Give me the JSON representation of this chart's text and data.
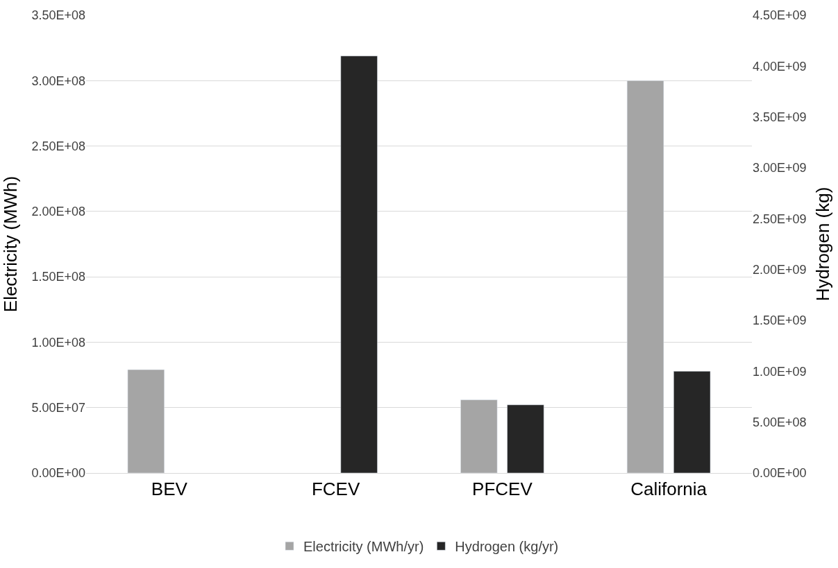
{
  "chart_data": {
    "type": "bar",
    "categories": [
      "BEV",
      "FCEV",
      "PFCEV",
      "California"
    ],
    "ylabel": "Electricity (MWh)",
    "y2label": "Hydrogen (kg)",
    "series": [
      {
        "name": "Electricity (MWh/yr)",
        "color": "#a5a5a5",
        "values": [
          79000000.0,
          null,
          56000000.0,
          300000000.0
        ]
      },
      {
        "name": "Hydrogen (kg/yr)",
        "color": "#262626",
        "values": [
          null,
          4100000000.0,
          670000000.0,
          1000000000.0
        ],
        "axis": "y2"
      }
    ],
    "ylim": [
      0,
      350000000.0
    ],
    "yticks": [
      {
        "value": 0,
        "label": "0.00E+00"
      },
      {
        "value": 50000000.0,
        "label": "5.00E+07"
      },
      {
        "value": 100000000.0,
        "label": "1.00E+08"
      },
      {
        "value": 150000000.0,
        "label": "1.50E+08"
      },
      {
        "value": 200000000.0,
        "label": "2.00E+08"
      },
      {
        "value": 250000000.0,
        "label": "2.50E+08"
      },
      {
        "value": 300000000.0,
        "label": "3.00E+08"
      },
      {
        "value": 350000000.0,
        "label": "3.50E+08"
      }
    ],
    "y2lim": [
      0,
      4500000000.0
    ],
    "y2ticks": [
      {
        "value": 0,
        "label": "0.00E+00"
      },
      {
        "value": 500000000.0,
        "label": "5.00E+08"
      },
      {
        "value": 1000000000.0,
        "label": "1.00E+09"
      },
      {
        "value": 1500000000.0,
        "label": "1.50E+09"
      },
      {
        "value": 2000000000.0,
        "label": "2.00E+09"
      },
      {
        "value": 2500000000.0,
        "label": "2.50E+09"
      },
      {
        "value": 3000000000.0,
        "label": "3.00E+09"
      },
      {
        "value": 3500000000.0,
        "label": "3.50E+09"
      },
      {
        "value": 4000000000.0,
        "label": "4.00E+09"
      },
      {
        "value": 4500000000.0,
        "label": "4.50E+09"
      }
    ],
    "grid": "y",
    "legend": "bottom"
  }
}
